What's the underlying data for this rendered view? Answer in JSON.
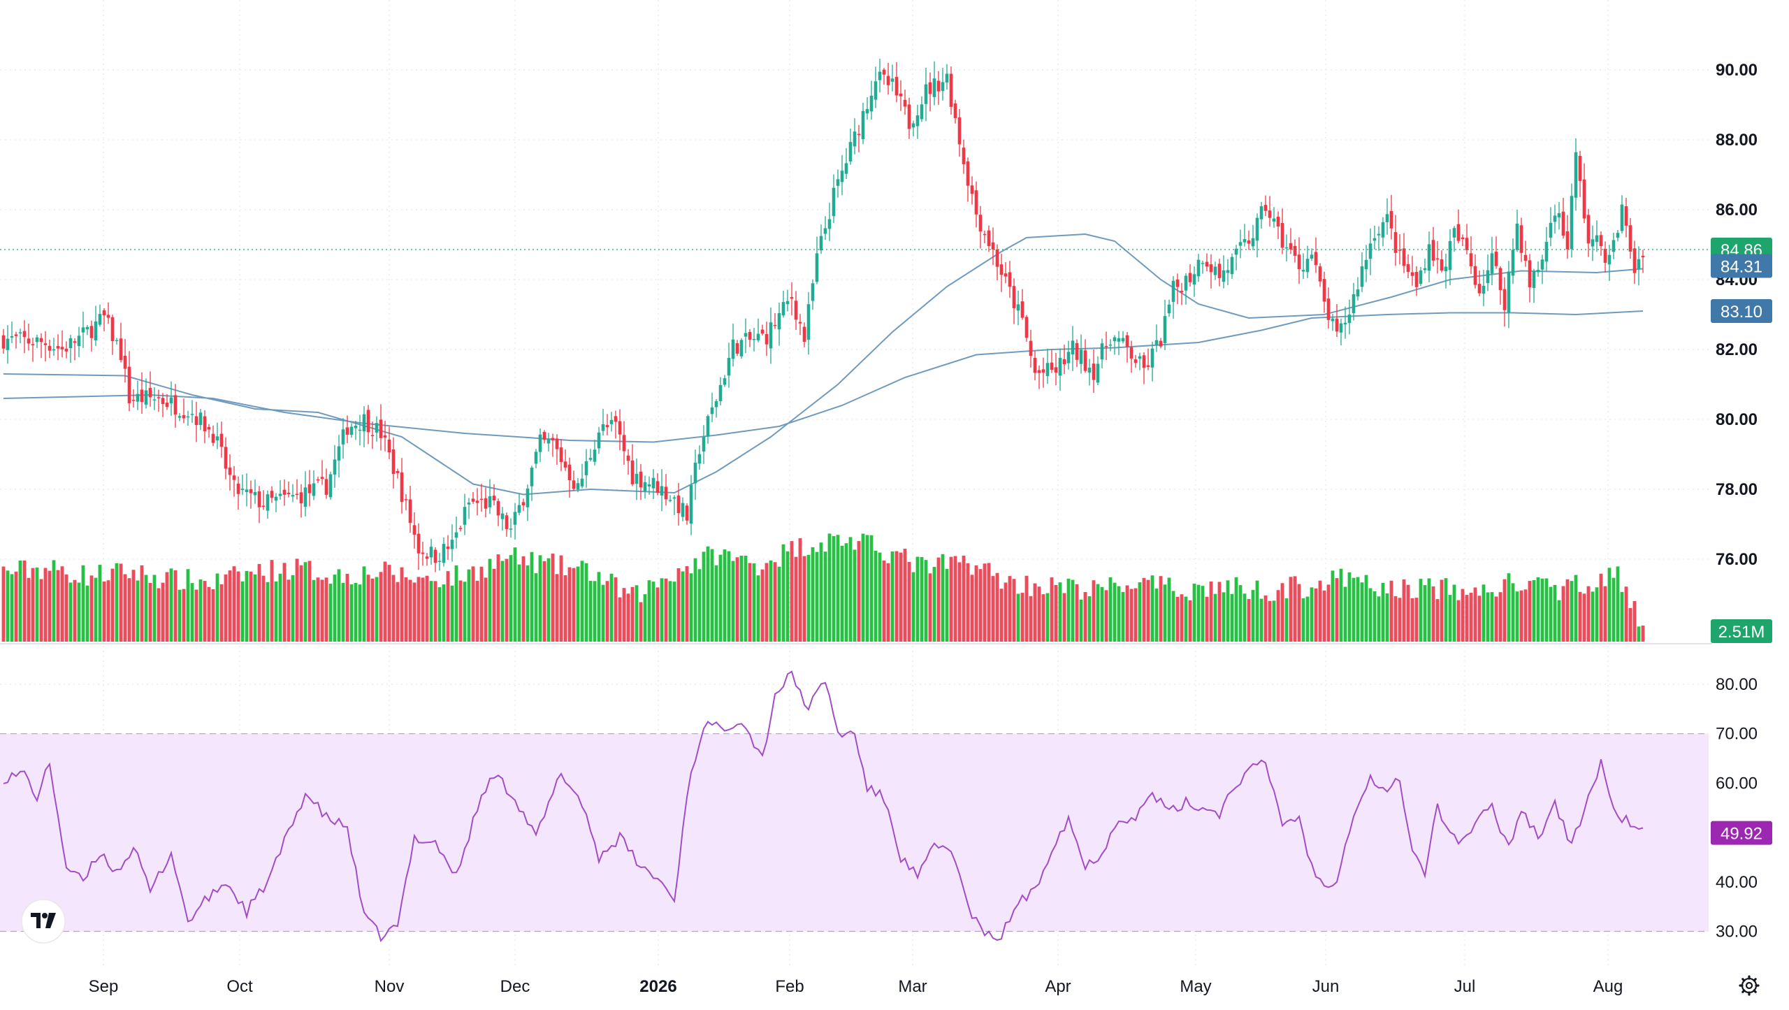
{
  "chart_data": {
    "type": "candlestick",
    "timeframe": "daily",
    "price_axis": {
      "ticks": [
        "90.00",
        "88.00",
        "86.00",
        "84.00",
        "82.00",
        "80.00",
        "78.00",
        "76.00"
      ],
      "range": [
        75.0,
        90.5
      ]
    },
    "time_axis": {
      "labels": [
        "Sep",
        "Oct",
        "Nov",
        "Dec",
        "2026",
        "Feb",
        "Mar",
        "Apr",
        "May",
        "Jun",
        "Jul",
        "Aug"
      ],
      "bold_label": "2026"
    },
    "badges": {
      "last_price": "84.86",
      "ma_short": "84.31",
      "ma_long": "83.10",
      "volume": "2.51M",
      "rsi": "49.92"
    },
    "price_path": [
      [
        0,
        82.3
      ],
      [
        10,
        82.2
      ],
      [
        14,
        82.0
      ],
      [
        19,
        82.4
      ],
      [
        24,
        82.9
      ],
      [
        28,
        81.9
      ],
      [
        30,
        80.6
      ],
      [
        37,
        80.6
      ],
      [
        45,
        80.2
      ],
      [
        50,
        79.6
      ],
      [
        55,
        78.0
      ],
      [
        62,
        77.6
      ],
      [
        70,
        77.8
      ],
      [
        77,
        78.1
      ],
      [
        82,
        79.8
      ],
      [
        86,
        80.0
      ],
      [
        90,
        79.6
      ],
      [
        94,
        78.3
      ],
      [
        99,
        76.3
      ],
      [
        103,
        76.1
      ],
      [
        107,
        76.4
      ],
      [
        111,
        77.6
      ],
      [
        116,
        77.6
      ],
      [
        121,
        76.8
      ],
      [
        124,
        77.8
      ],
      [
        128,
        79.3
      ],
      [
        131,
        79.3
      ],
      [
        137,
        78.0
      ],
      [
        142,
        79.7
      ],
      [
        146,
        79.8
      ],
      [
        150,
        78.4
      ],
      [
        156,
        78.1
      ],
      [
        160,
        77.7
      ],
      [
        163,
        77.2
      ],
      [
        166,
        79.2
      ],
      [
        170,
        80.6
      ],
      [
        174,
        82.1
      ],
      [
        182,
        82.4
      ],
      [
        188,
        83.5
      ],
      [
        191,
        82.3
      ],
      [
        194,
        84.6
      ],
      [
        198,
        86.4
      ],
      [
        204,
        88.4
      ],
      [
        208,
        89.8
      ],
      [
        212,
        89.5
      ],
      [
        216,
        88.5
      ],
      [
        220,
        89.4
      ],
      [
        225,
        89.8
      ],
      [
        229,
        87.4
      ],
      [
        232,
        85.9
      ],
      [
        236,
        84.8
      ],
      [
        239,
        83.9
      ],
      [
        243,
        82.8
      ],
      [
        246,
        81.3
      ],
      [
        251,
        81.4
      ],
      [
        255,
        82.0
      ],
      [
        260,
        81.4
      ],
      [
        264,
        82.4
      ],
      [
        268,
        82.0
      ],
      [
        272,
        81.4
      ],
      [
        276,
        82.3
      ],
      [
        279,
        83.7
      ],
      [
        283,
        84.1
      ],
      [
        286,
        84.7
      ],
      [
        290,
        84.1
      ],
      [
        293,
        84.5
      ],
      [
        298,
        85.3
      ],
      [
        301,
        86.1
      ],
      [
        305,
        85.1
      ],
      [
        309,
        84.4
      ],
      [
        312,
        84.7
      ],
      [
        315,
        83.3
      ],
      [
        318,
        82.3
      ],
      [
        321,
        83.1
      ],
      [
        324,
        84.3
      ],
      [
        327,
        85.4
      ],
      [
        330,
        85.7
      ],
      [
        333,
        84.6
      ],
      [
        337,
        83.8
      ],
      [
        340,
        85.0
      ],
      [
        343,
        84.2
      ],
      [
        346,
        85.3
      ],
      [
        349,
        84.8
      ],
      [
        352,
        83.7
      ],
      [
        355,
        84.6
      ],
      [
        358,
        83.4
      ],
      [
        361,
        85.6
      ],
      [
        364,
        83.8
      ],
      [
        367,
        84.6
      ],
      [
        370,
        86.1
      ],
      [
        373,
        85.0
      ],
      [
        375,
        87.5
      ],
      [
        378,
        85.1
      ],
      [
        381,
        85.0
      ],
      [
        383,
        84.5
      ],
      [
        386,
        86.0
      ],
      [
        389,
        84.3
      ],
      [
        391,
        84.86
      ]
    ],
    "ma_short_path": [
      [
        0,
        81.3
      ],
      [
        29,
        81.25
      ],
      [
        45,
        80.7
      ],
      [
        60,
        80.3
      ],
      [
        75,
        80.2
      ],
      [
        95,
        79.5
      ],
      [
        112,
        78.15
      ],
      [
        124,
        77.85
      ],
      [
        140,
        78.0
      ],
      [
        160,
        77.9
      ],
      [
        170,
        78.5
      ],
      [
        183,
        79.5
      ],
      [
        199,
        81.0
      ],
      [
        212,
        82.5
      ],
      [
        225,
        83.8
      ],
      [
        238,
        84.8
      ],
      [
        244,
        85.2
      ],
      [
        258,
        85.3
      ],
      [
        265,
        85.1
      ],
      [
        276,
        84.0
      ],
      [
        285,
        83.3
      ],
      [
        297,
        82.9
      ],
      [
        315,
        83.0
      ],
      [
        331,
        83.5
      ],
      [
        345,
        84.0
      ],
      [
        362,
        84.25
      ],
      [
        380,
        84.2
      ],
      [
        391,
        84.31
      ]
    ],
    "ma_long_path": [
      [
        0,
        80.6
      ],
      [
        35,
        80.7
      ],
      [
        50,
        80.6
      ],
      [
        67,
        80.2
      ],
      [
        85,
        79.9
      ],
      [
        110,
        79.6
      ],
      [
        135,
        79.4
      ],
      [
        155,
        79.35
      ],
      [
        170,
        79.55
      ],
      [
        185,
        79.8
      ],
      [
        200,
        80.4
      ],
      [
        215,
        81.2
      ],
      [
        232,
        81.85
      ],
      [
        250,
        82.0
      ],
      [
        265,
        82.05
      ],
      [
        285,
        82.2
      ],
      [
        300,
        82.55
      ],
      [
        312,
        82.9
      ],
      [
        330,
        83.0
      ],
      [
        345,
        83.05
      ],
      [
        360,
        83.05
      ],
      [
        375,
        83.0
      ],
      [
        391,
        83.1
      ]
    ],
    "rsi_path": [
      [
        0,
        61
      ],
      [
        5,
        62
      ],
      [
        8,
        57
      ],
      [
        11,
        64
      ],
      [
        15,
        43
      ],
      [
        19,
        40
      ],
      [
        23,
        46
      ],
      [
        27,
        42
      ],
      [
        31,
        47
      ],
      [
        35,
        38
      ],
      [
        40,
        46
      ],
      [
        44,
        32
      ],
      [
        48,
        36
      ],
      [
        53,
        40
      ],
      [
        58,
        34
      ],
      [
        63,
        40
      ],
      [
        68,
        50
      ],
      [
        72,
        58
      ],
      [
        77,
        53
      ],
      [
        82,
        51
      ],
      [
        86,
        33
      ],
      [
        90,
        29
      ],
      [
        94,
        31
      ],
      [
        98,
        49
      ],
      [
        103,
        48
      ],
      [
        108,
        41
      ],
      [
        113,
        55
      ],
      [
        117,
        62
      ],
      [
        122,
        57
      ],
      [
        127,
        49
      ],
      [
        133,
        62
      ],
      [
        138,
        56
      ],
      [
        142,
        45
      ],
      [
        147,
        49
      ],
      [
        152,
        43
      ],
      [
        157,
        40
      ],
      [
        160,
        36
      ],
      [
        163,
        58
      ],
      [
        167,
        72
      ],
      [
        171,
        71
      ],
      [
        176,
        73
      ],
      [
        181,
        65
      ],
      [
        184,
        78
      ],
      [
        188,
        82
      ],
      [
        192,
        75
      ],
      [
        196,
        81
      ],
      [
        199,
        70
      ],
      [
        203,
        70
      ],
      [
        206,
        59
      ],
      [
        210,
        57
      ],
      [
        214,
        45
      ],
      [
        218,
        41
      ],
      [
        222,
        47
      ],
      [
        226,
        47
      ],
      [
        230,
        35
      ],
      [
        234,
        29
      ],
      [
        238,
        29
      ],
      [
        242,
        36
      ],
      [
        246,
        38
      ],
      [
        250,
        47
      ],
      [
        254,
        53
      ],
      [
        258,
        43
      ],
      [
        262,
        46
      ],
      [
        266,
        53
      ],
      [
        270,
        53
      ],
      [
        274,
        58
      ],
      [
        278,
        54
      ],
      [
        282,
        56
      ],
      [
        286,
        55
      ],
      [
        290,
        54
      ],
      [
        294,
        60
      ],
      [
        298,
        63
      ],
      [
        301,
        64
      ],
      [
        305,
        52
      ],
      [
        309,
        53
      ],
      [
        312,
        43
      ],
      [
        315,
        39
      ],
      [
        318,
        41
      ],
      [
        322,
        54
      ],
      [
        326,
        61
      ],
      [
        330,
        58
      ],
      [
        333,
        61
      ],
      [
        336,
        46
      ],
      [
        339,
        42
      ],
      [
        342,
        55
      ],
      [
        345,
        50
      ],
      [
        348,
        48
      ],
      [
        351,
        52
      ],
      [
        355,
        55
      ],
      [
        359,
        47
      ],
      [
        362,
        55
      ],
      [
        366,
        49
      ],
      [
        370,
        56
      ],
      [
        374,
        47
      ],
      [
        377,
        55
      ],
      [
        381,
        64
      ],
      [
        384,
        54
      ],
      [
        388,
        52
      ],
      [
        391,
        50
      ]
    ],
    "volume_range": [
      0,
      15
    ],
    "volume_path": [
      [
        0,
        9.5
      ],
      [
        10,
        10.0
      ],
      [
        20,
        9.0
      ],
      [
        30,
        9.5
      ],
      [
        40,
        8.5
      ],
      [
        50,
        8.0
      ],
      [
        60,
        9.5
      ],
      [
        70,
        10.0
      ],
      [
        80,
        9.0
      ],
      [
        90,
        9.5
      ],
      [
        100,
        8.5
      ],
      [
        110,
        9.0
      ],
      [
        120,
        11.5
      ],
      [
        130,
        10.5
      ],
      [
        140,
        9.5
      ],
      [
        150,
        6.0
      ],
      [
        160,
        9.5
      ],
      [
        170,
        12.0
      ],
      [
        180,
        10.5
      ],
      [
        190,
        13.0
      ],
      [
        200,
        14.0
      ],
      [
        210,
        12.5
      ],
      [
        220,
        10.0
      ],
      [
        230,
        11.0
      ],
      [
        240,
        8.0
      ],
      [
        250,
        7.5
      ],
      [
        260,
        7.0
      ],
      [
        270,
        8.0
      ],
      [
        280,
        7.0
      ],
      [
        290,
        7.5
      ],
      [
        300,
        7.0
      ],
      [
        310,
        7.5
      ],
      [
        320,
        8.5
      ],
      [
        330,
        7.0
      ],
      [
        340,
        7.5
      ],
      [
        350,
        6.5
      ],
      [
        360,
        8.0
      ],
      [
        370,
        7.0
      ],
      [
        380,
        8.5
      ],
      [
        385,
        9.0
      ],
      [
        391,
        1.5
      ]
    ],
    "rsi_axis": {
      "ticks": [
        "80.00",
        "70.00",
        "60.00",
        "50.00",
        "40.00",
        "30.00"
      ],
      "range": [
        27,
        85
      ],
      "band": [
        30,
        70
      ]
    },
    "colors": {
      "up": "#22ab94",
      "down": "#f23645",
      "up_volume": "#26c144",
      "down_volume": "#ef4a5a",
      "ma_line": "#6e9bbd",
      "rsi_line": "#a14dc6",
      "rsi_band": "#f4e6fd",
      "last_price_badge": "#1ea56c",
      "ma_badge": "#3f78a9",
      "volume_badge": "#1ea56c",
      "rsi_badge": "#9c27b0"
    },
    "icons": [
      "tradingview-logo-icon",
      "settings-gear-icon"
    ]
  }
}
